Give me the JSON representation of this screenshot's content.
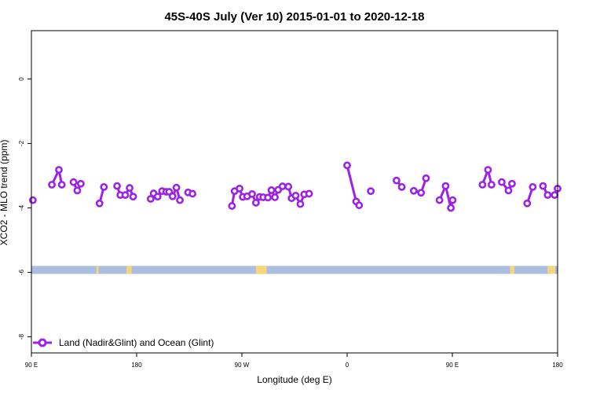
{
  "chart_data": {
    "type": "line",
    "title": "45S-40S July (Ver 10)   2015-01-01 to 2020-12-18",
    "xlabel": "Longitude (deg E)",
    "ylabel": "XCO2 - MLO trend (ppm)",
    "xlim": [
      90,
      270
    ],
    "ylim": [
      -8.5,
      1.5
    ],
    "x_ticks": [
      {
        "value": 90,
        "label": "90 E"
      },
      {
        "value": 126,
        "label": "180"
      },
      {
        "value": 162,
        "label": "90 W"
      },
      {
        "value": 198,
        "label": "0"
      },
      {
        "value": 234,
        "label": "90 E"
      },
      {
        "value": 270,
        "label": "180"
      }
    ],
    "y_ticks": [
      0,
      -2,
      -4,
      -6,
      -8
    ],
    "line_color": "#9b22e6",
    "series": [
      {
        "name": "Land (Nadir&Glint) and Ocean (Glint)",
        "segments": [
          [
            [
              90.5,
              -3.76
            ]
          ],
          [
            [
              97.0,
              -3.28
            ],
            [
              99.4,
              -2.82
            ],
            [
              100.4,
              -3.28
            ]
          ],
          [
            [
              104.4,
              -3.2
            ],
            [
              105.7,
              -3.46
            ],
            [
              106.9,
              -3.25
            ]
          ],
          [
            [
              113.3,
              -3.86
            ],
            [
              114.8,
              -3.35
            ]
          ],
          [
            [
              119.3,
              -3.32
            ],
            [
              120.4,
              -3.6
            ],
            [
              122.1,
              -3.6
            ],
            [
              123.6,
              -3.38
            ],
            [
              124.8,
              -3.65
            ]
          ],
          [
            [
              130.8,
              -3.72
            ],
            [
              131.8,
              -3.55
            ],
            [
              133.2,
              -3.65
            ],
            [
              134.7,
              -3.48
            ],
            [
              136.1,
              -3.5
            ],
            [
              137.1,
              -3.5
            ],
            [
              138.3,
              -3.64
            ],
            [
              139.6,
              -3.37
            ],
            [
              140.8,
              -3.76
            ]
          ],
          [
            [
              143.6,
              -3.52
            ],
            [
              145.1,
              -3.56
            ]
          ],
          [
            [
              158.6,
              -3.94
            ],
            [
              159.5,
              -3.48
            ],
            [
              161.2,
              -3.4
            ],
            [
              162.3,
              -3.66
            ],
            [
              163.8,
              -3.64
            ],
            [
              165.5,
              -3.57
            ],
            [
              166.8,
              -3.84
            ],
            [
              168.1,
              -3.66
            ],
            [
              169.3,
              -3.67
            ],
            [
              170.9,
              -3.68
            ],
            [
              172.1,
              -3.45
            ],
            [
              173.3,
              -3.67
            ],
            [
              174.4,
              -3.44
            ],
            [
              175.9,
              -3.33
            ],
            [
              177.9,
              -3.34
            ],
            [
              179.0,
              -3.7
            ],
            [
              180.4,
              -3.62
            ],
            [
              182.0,
              -3.88
            ],
            [
              183.3,
              -3.58
            ],
            [
              185.0,
              -3.56
            ]
          ],
          [
            [
              198.0,
              -2.68
            ],
            [
              201.1,
              -3.8
            ],
            [
              202.1,
              -3.92
            ]
          ],
          [
            [
              206.1,
              -3.48
            ]
          ],
          [
            [
              214.9,
              -3.15
            ],
            [
              216.7,
              -3.35
            ]
          ],
          [
            [
              220.8,
              -3.47
            ],
            [
              223.3,
              -3.53
            ],
            [
              225.0,
              -3.08
            ]
          ],
          [
            [
              229.6,
              -3.76
            ],
            [
              231.7,
              -3.32
            ],
            [
              233.5,
              -4.0
            ],
            [
              234.1,
              -3.76
            ]
          ],
          [
            [
              244.3,
              -3.28
            ],
            [
              246.2,
              -2.82
            ],
            [
              247.4,
              -3.28
            ]
          ],
          [
            [
              250.9,
              -3.2
            ],
            [
              253.2,
              -3.46
            ],
            [
              254.4,
              -3.25
            ]
          ],
          [
            [
              259.6,
              -3.86
            ],
            [
              261.5,
              -3.35
            ]
          ],
          [
            [
              265.0,
              -3.32
            ],
            [
              266.6,
              -3.6
            ],
            [
              269.0,
              -3.6
            ],
            [
              270.0,
              -3.4
            ]
          ]
        ]
      }
    ],
    "map_strip": {
      "y_range": [
        -6.05,
        -5.8
      ],
      "ocean_color": "#a9bee0",
      "land_color": "#f5d67a",
      "land_spans": [
        [
          112.2,
          113.0
        ],
        [
          122.5,
          124.3
        ],
        [
          166.8,
          170.5
        ],
        [
          253.7,
          255.2
        ],
        [
          266.6,
          269.2
        ]
      ]
    },
    "legend": {
      "position": "bottom-left",
      "label": "Land (Nadir&Glint) and Ocean (Glint)"
    }
  }
}
